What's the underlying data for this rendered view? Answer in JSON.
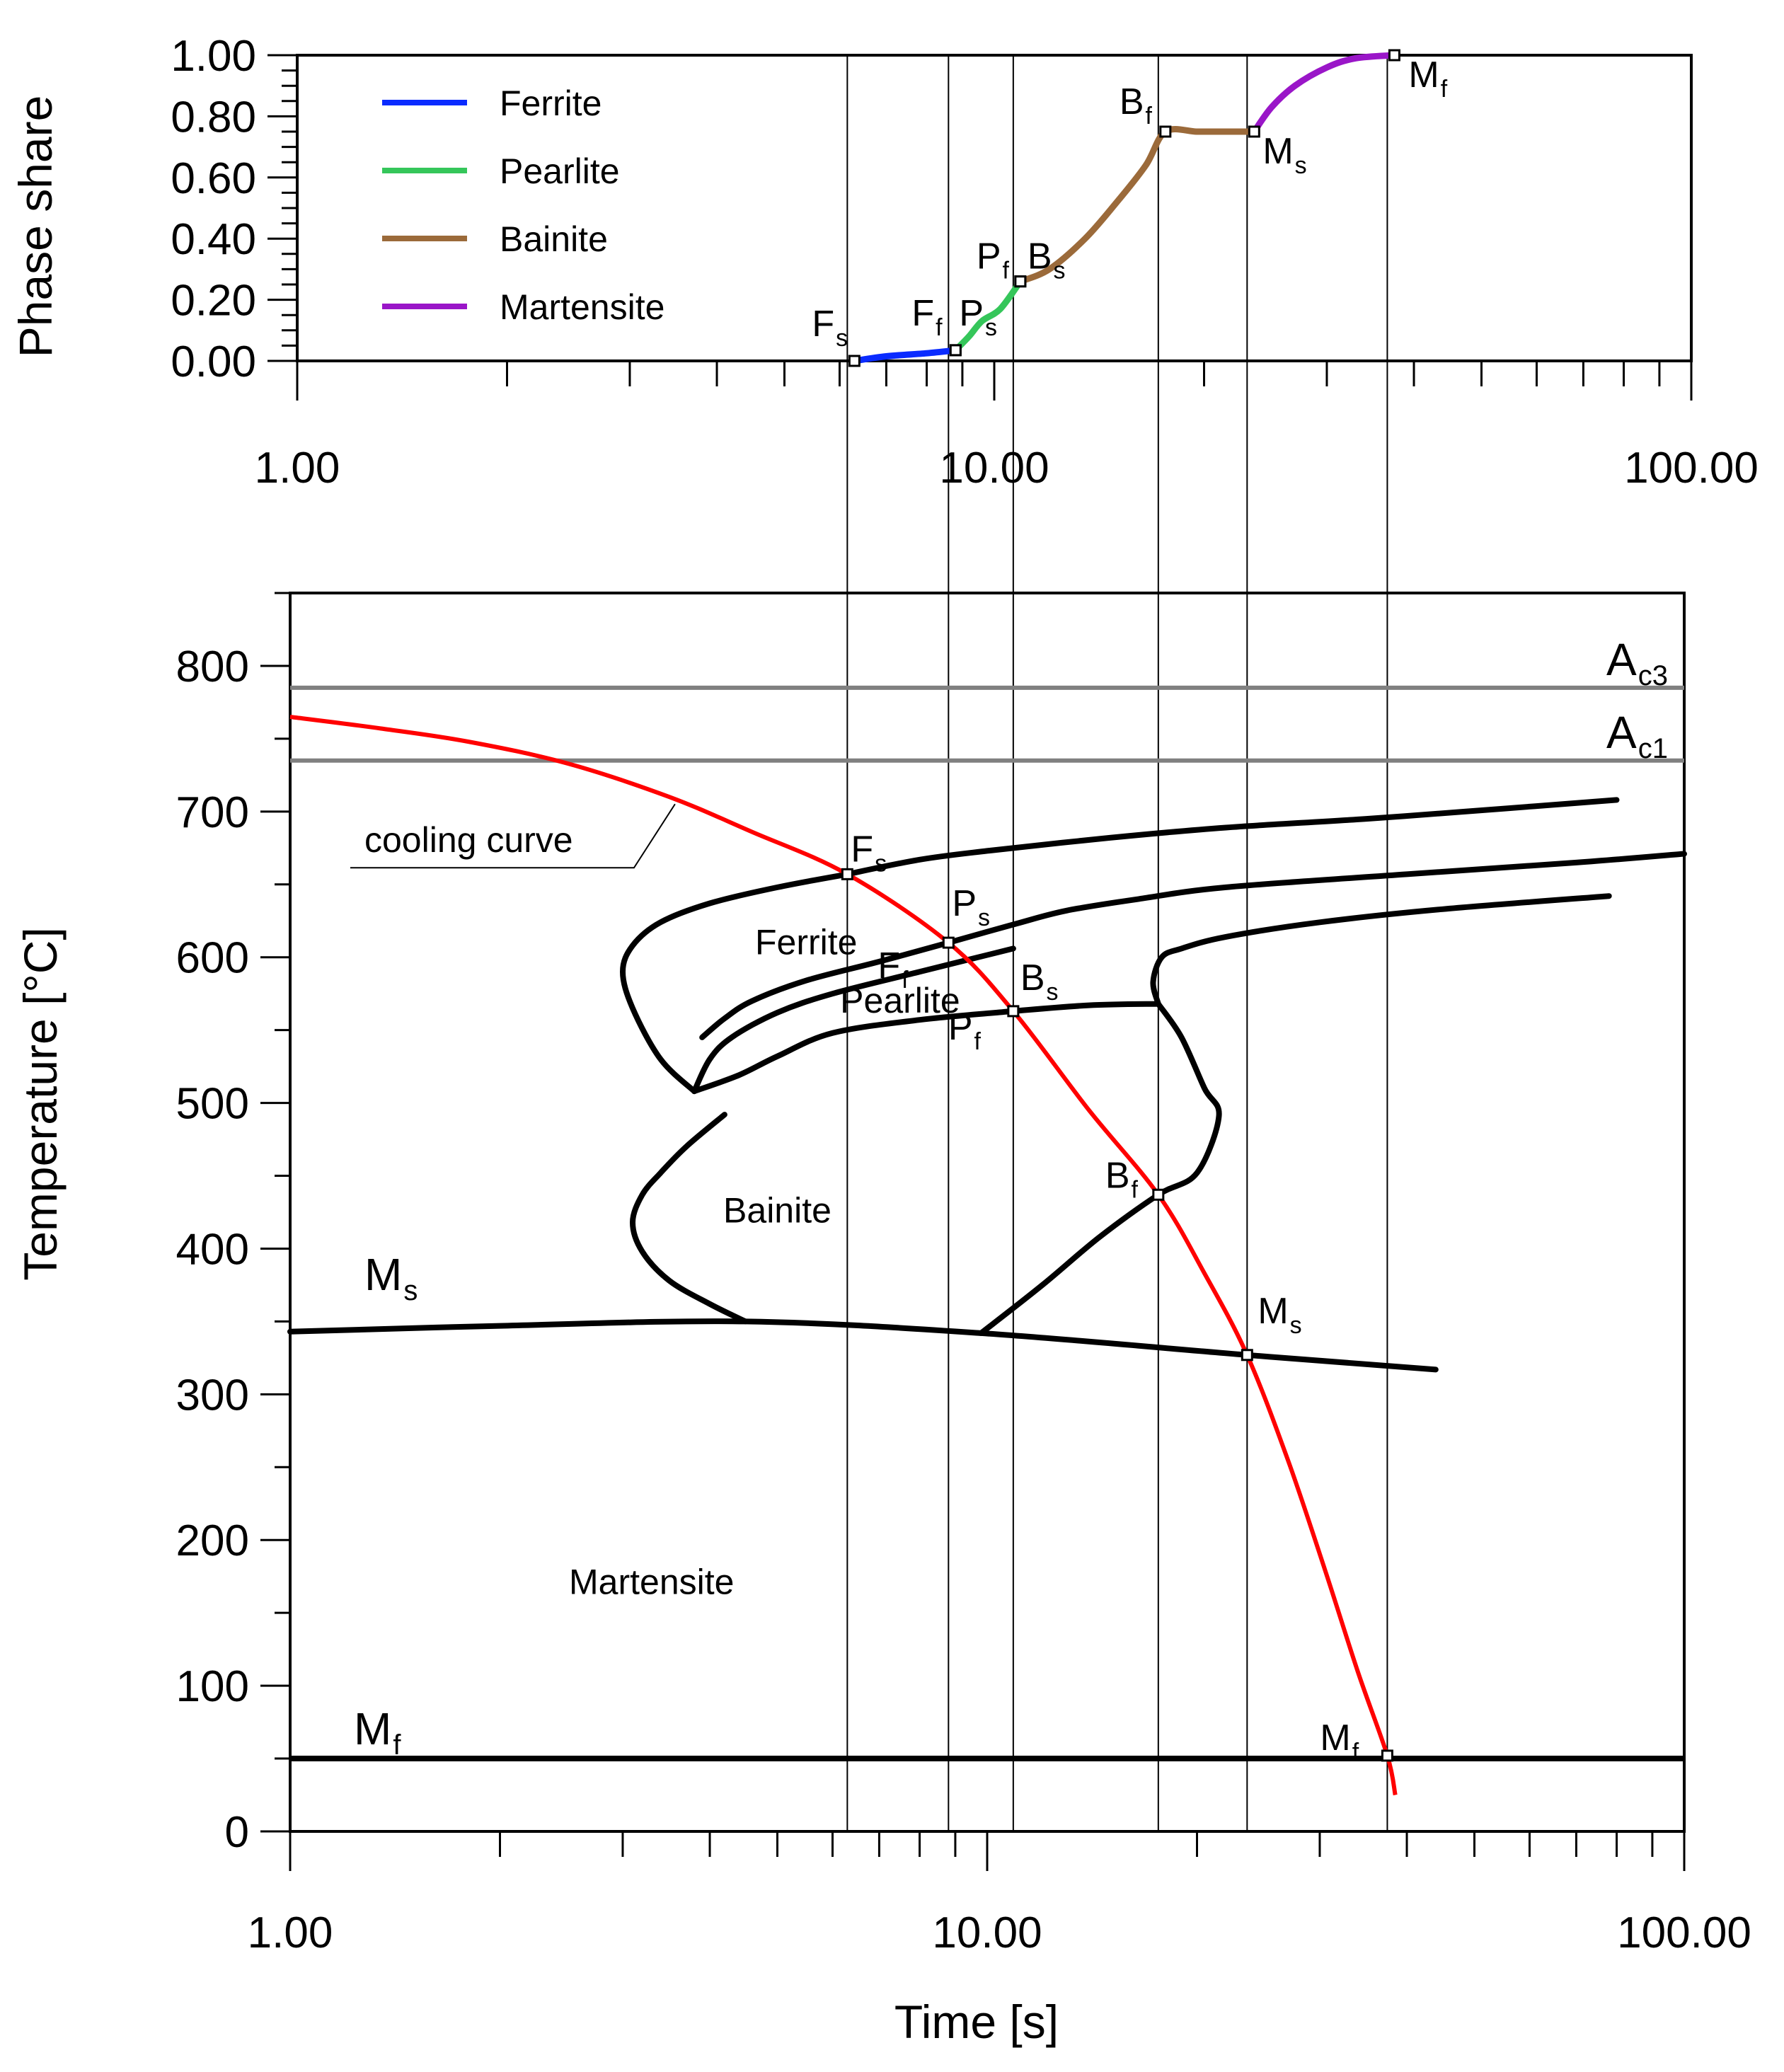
{
  "chart_data": [
    {
      "type": "line",
      "id": "phase-share",
      "ylabel": "Phase share",
      "xscale": "log",
      "xlim": [
        1,
        100
      ],
      "ylim": [
        0,
        1
      ],
      "x_tick_labels": [
        "1.00",
        "10.00",
        "100.00"
      ],
      "y_tick_labels": [
        "0.00",
        "0.20",
        "0.40",
        "0.60",
        "0.80",
        "1.00"
      ],
      "series": [
        {
          "name": "Ferrite",
          "color": "#0a2bff",
          "x": [
            6.3,
            7.0,
            8.0,
            8.8
          ],
          "y": [
            0.0,
            0.015,
            0.025,
            0.035
          ]
        },
        {
          "name": "Pearlite",
          "color": "#35c65a",
          "x": [
            8.8,
            9.2,
            9.6,
            10.2,
            10.9
          ],
          "y": [
            0.035,
            0.08,
            0.13,
            0.17,
            0.26
          ]
        },
        {
          "name": "Bainite",
          "color": "#9b6a3a",
          "x": [
            10.9,
            12.0,
            13.5,
            15.0,
            16.5,
            17.6,
            19.5,
            21.0,
            23.6
          ],
          "y": [
            0.26,
            0.3,
            0.4,
            0.52,
            0.64,
            0.75,
            0.75,
            0.75,
            0.75
          ]
        },
        {
          "name": "Martensite",
          "color": "#9a16c8",
          "x": [
            23.6,
            25.0,
            27.0,
            30.0,
            33.0,
            37.5
          ],
          "y": [
            0.75,
            0.83,
            0.9,
            0.96,
            0.99,
            1.0
          ]
        }
      ],
      "points": [
        {
          "name": "F",
          "sub": "s",
          "x": 6.3,
          "y": 0.0
        },
        {
          "name": "F",
          "sub": "f",
          "x": 8.8,
          "y": 0.035
        },
        {
          "name": "P",
          "sub": "s",
          "x": 8.8,
          "y": 0.035
        },
        {
          "name": "P",
          "sub": "f",
          "x": 10.9,
          "y": 0.26
        },
        {
          "name": "B",
          "sub": "s",
          "x": 10.9,
          "y": 0.26
        },
        {
          "name": "B",
          "sub": "f",
          "x": 17.6,
          "y": 0.75
        },
        {
          "name": "M",
          "sub": "s",
          "x": 23.6,
          "y": 0.75
        },
        {
          "name": "M",
          "sub": "f",
          "x": 37.5,
          "y": 1.0
        }
      ]
    },
    {
      "type": "line",
      "id": "cct-diagram",
      "xlabel": "Time [s]",
      "ylabel": "Temperature [°C]",
      "xscale": "log",
      "xlim": [
        1,
        100
      ],
      "ylim": [
        0,
        850
      ],
      "x_tick_labels": [
        "1.00",
        "10.00",
        "100.00"
      ],
      "y_tick_labels": [
        "0",
        "100",
        "200",
        "300",
        "400",
        "500",
        "600",
        "700",
        "800"
      ],
      "ac3": {
        "label": "A",
        "sub": "c3",
        "value": 785,
        "color": "#808080"
      },
      "ac1": {
        "label": "A",
        "sub": "c1",
        "value": 735,
        "color": "#808080"
      },
      "ms_label": {
        "label": "M",
        "sub": "s"
      },
      "mf_label": {
        "label": "M",
        "sub": "f",
        "value": 50
      },
      "cooling_curve": {
        "label": "cooling curve",
        "color": "#ff0000",
        "x": [
          1.0,
          1.35,
          1.8,
          2.5,
          3.5,
          4.6,
          6.3,
          8.8,
          10.9,
          14.0,
          17.6,
          20.5,
          23.6,
          27.0,
          30.5,
          34.0,
          37.5,
          38.5
        ],
        "y": [
          765,
          757,
          748,
          733,
          710,
          686,
          657,
          610,
          563,
          495,
          437,
          383,
          327,
          255,
          180,
          110,
          52,
          25
        ]
      },
      "boundaries": [
        {
          "name": "ferrite-start-upper",
          "x": [
            6.3,
            8.0,
            10.0,
            15.0,
            22.0,
            35.0,
            55.0,
            80.0
          ],
          "y": [
            657,
            667,
            673,
            682,
            689,
            695,
            702,
            708
          ]
        },
        {
          "name": "ferrite-start-nose",
          "x": [
            6.3,
            5.0,
            4.0,
            3.4,
            3.1,
            3.0,
            3.1,
            3.4,
            3.8
          ],
          "y": [
            657,
            648,
            637,
            624,
            608,
            590,
            565,
            530,
            508
          ]
        },
        {
          "name": "pearlite-start",
          "x": [
            8.8,
            11.0,
            13.0,
            16.5,
            22.0,
            40.0,
            70.0,
            100.0
          ],
          "y": [
            610,
            623,
            632,
            640,
            648,
            657,
            665,
            671
          ]
        },
        {
          "name": "ferrite-finish",
          "x": [
            8.8,
            7.0,
            5.5,
            4.6,
            4.2,
            3.9
          ],
          "y": [
            610,
            597,
            584,
            570,
            558,
            545
          ]
        },
        {
          "name": "pearlite-finish-lower",
          "x": [
            3.8,
            4.0,
            4.3,
            5.0,
            6.0,
            8.0,
            10.9
          ],
          "y": [
            508,
            530,
            545,
            562,
            575,
            590,
            606
          ]
        },
        {
          "name": "pearlite-finish-right",
          "x": [
            3.8,
            4.4,
            5.0,
            6.0,
            8.0,
            10.9,
            14.0,
            17.6
          ],
          "y": [
            508,
            519,
            532,
            548,
            557,
            563,
            567,
            568
          ]
        },
        {
          "name": "bainite-start",
          "x": [
            17.6,
            17.3,
            17.8,
            19.0,
            22.0,
            30.0,
            45.0,
            78.0
          ],
          "y": [
            568,
            583,
            600,
            606,
            614,
            624,
            633,
            642
          ]
        },
        {
          "name": "bainite-finish-right",
          "x": [
            17.6,
            19.0,
            20.5,
            21.5,
            20.0,
            17.6,
            14.5,
            12.0,
            9.8
          ],
          "y": [
            568,
            545,
            510,
            491,
            452,
            437,
            408,
            375,
            342
          ]
        },
        {
          "name": "bainite-nose",
          "x": [
            4.2,
            3.7,
            3.4,
            3.2,
            3.1,
            3.2,
            3.5,
            4.0,
            4.5
          ],
          "y": [
            492,
            470,
            452,
            437,
            418,
            398,
            378,
            362,
            350
          ]
        },
        {
          "name": "ms-line",
          "x": [
            1.0,
            2.0,
            4.5,
            9.8,
            23.6,
            44.0
          ],
          "y": [
            343,
            347,
            350,
            342,
            327,
            317
          ]
        }
      ],
      "regions": [
        {
          "label": "Ferrite",
          "x": 5.5,
          "y": 602
        },
        {
          "label": "Pearlite",
          "x": 7.5,
          "y": 562
        },
        {
          "label": "Bainite",
          "x": 5.0,
          "y": 418
        },
        {
          "label": "Martensite",
          "x": 3.3,
          "y": 163
        }
      ],
      "points": [
        {
          "name": "F",
          "sub": "s",
          "x": 6.3,
          "y": 657
        },
        {
          "name": "P",
          "sub": "s",
          "x": 8.8,
          "y": 610
        },
        {
          "name": "F",
          "sub": "f",
          "x": 8.8,
          "y": 610
        },
        {
          "name": "B",
          "sub": "s",
          "x": 10.9,
          "y": 563
        },
        {
          "name": "P",
          "sub": "f",
          "x": 10.9,
          "y": 563
        },
        {
          "name": "B",
          "sub": "f",
          "x": 17.6,
          "y": 437
        },
        {
          "name": "M",
          "sub": "s",
          "x": 23.6,
          "y": 327
        },
        {
          "name": "M",
          "sub": "f",
          "x": 37.5,
          "y": 52
        }
      ],
      "transition_times": [
        6.3,
        8.8,
        10.9,
        17.6,
        23.6,
        37.5
      ]
    }
  ]
}
